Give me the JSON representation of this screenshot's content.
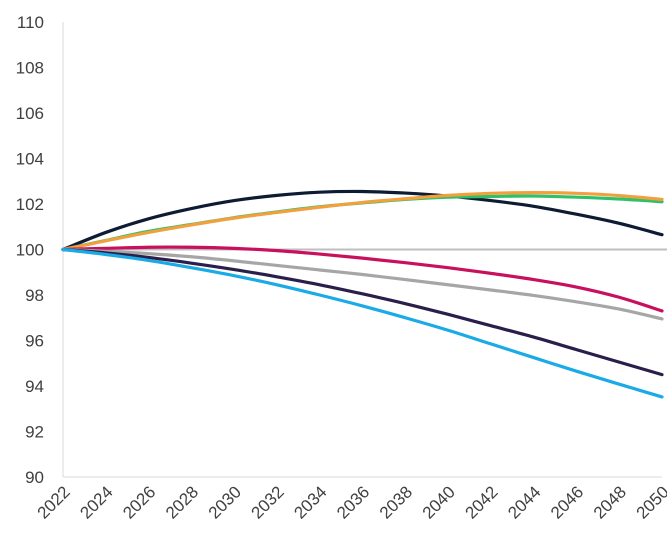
{
  "chart_data": {
    "type": "line",
    "title": "",
    "xlabel": "",
    "ylabel": "",
    "ylim": [
      90,
      110
    ],
    "xlim": [
      2022,
      2050
    ],
    "yticks": [
      "90",
      "92",
      "94",
      "96",
      "98",
      "100",
      "102",
      "104",
      "106",
      "108",
      "110"
    ],
    "xticks": [
      "2022",
      "2024",
      "2026",
      "2028",
      "2030",
      "2032",
      "2034",
      "2036",
      "2038",
      "2040",
      "2042",
      "2044",
      "2046",
      "2048",
      "2050"
    ],
    "grid": false,
    "legend": "none",
    "axis_color": "#d9d9d9",
    "baseline": {
      "value": 100,
      "color": "#bfbfbf"
    },
    "series": [
      {
        "color": "#0d1b33",
        "x": [
          2022,
          2024,
          2026,
          2028,
          2030,
          2032,
          2034,
          2036,
          2038,
          2040,
          2042,
          2044,
          2046,
          2048,
          2050
        ],
        "values": [
          100.0,
          100.75,
          101.35,
          101.8,
          102.15,
          102.38,
          102.52,
          102.55,
          102.48,
          102.35,
          102.15,
          101.9,
          101.55,
          101.15,
          100.65
        ]
      },
      {
        "color": "#2fc16a",
        "x": [
          2022,
          2024,
          2026,
          2028,
          2030,
          2032,
          2034,
          2036,
          2038,
          2040,
          2042,
          2044,
          2046,
          2048,
          2050
        ],
        "values": [
          100.0,
          100.4,
          100.8,
          101.1,
          101.4,
          101.65,
          101.88,
          102.05,
          102.2,
          102.3,
          102.33,
          102.35,
          102.3,
          102.22,
          102.1
        ]
      },
      {
        "color": "#f2a03d",
        "x": [
          2022,
          2024,
          2026,
          2028,
          2030,
          2032,
          2034,
          2036,
          2038,
          2040,
          2042,
          2044,
          2046,
          2048,
          2050
        ],
        "values": [
          100.0,
          100.38,
          100.75,
          101.08,
          101.38,
          101.63,
          101.86,
          102.07,
          102.23,
          102.38,
          102.47,
          102.5,
          102.47,
          102.37,
          102.2
        ]
      },
      {
        "color": "#c8105f",
        "x": [
          2022,
          2024,
          2026,
          2028,
          2030,
          2032,
          2034,
          2036,
          2038,
          2040,
          2042,
          2044,
          2046,
          2048,
          2050
        ],
        "values": [
          100.0,
          100.05,
          100.1,
          100.1,
          100.05,
          99.95,
          99.8,
          99.62,
          99.42,
          99.2,
          98.95,
          98.68,
          98.35,
          97.9,
          97.3
        ]
      },
      {
        "color": "#a6a6a6",
        "x": [
          2022,
          2024,
          2026,
          2028,
          2030,
          2032,
          2034,
          2036,
          2038,
          2040,
          2042,
          2044,
          2046,
          2048,
          2050
        ],
        "values": [
          100.0,
          99.92,
          99.82,
          99.68,
          99.5,
          99.3,
          99.1,
          98.9,
          98.68,
          98.45,
          98.22,
          97.98,
          97.7,
          97.38,
          96.95
        ]
      },
      {
        "color": "#2a1f4a",
        "x": [
          2022,
          2024,
          2026,
          2028,
          2030,
          2032,
          2034,
          2036,
          2038,
          2040,
          2042,
          2044,
          2046,
          2048,
          2050
        ],
        "values": [
          100.0,
          99.85,
          99.65,
          99.4,
          99.12,
          98.8,
          98.45,
          98.05,
          97.62,
          97.15,
          96.65,
          96.15,
          95.6,
          95.05,
          94.5
        ]
      },
      {
        "color": "#1aaae6",
        "x": [
          2022,
          2024,
          2026,
          2028,
          2030,
          2032,
          2034,
          2036,
          2038,
          2040,
          2042,
          2044,
          2046,
          2048,
          2050
        ],
        "values": [
          100.0,
          99.78,
          99.52,
          99.2,
          98.85,
          98.45,
          98.0,
          97.52,
          97.0,
          96.45,
          95.85,
          95.25,
          94.65,
          94.08,
          93.52
        ]
      }
    ]
  }
}
